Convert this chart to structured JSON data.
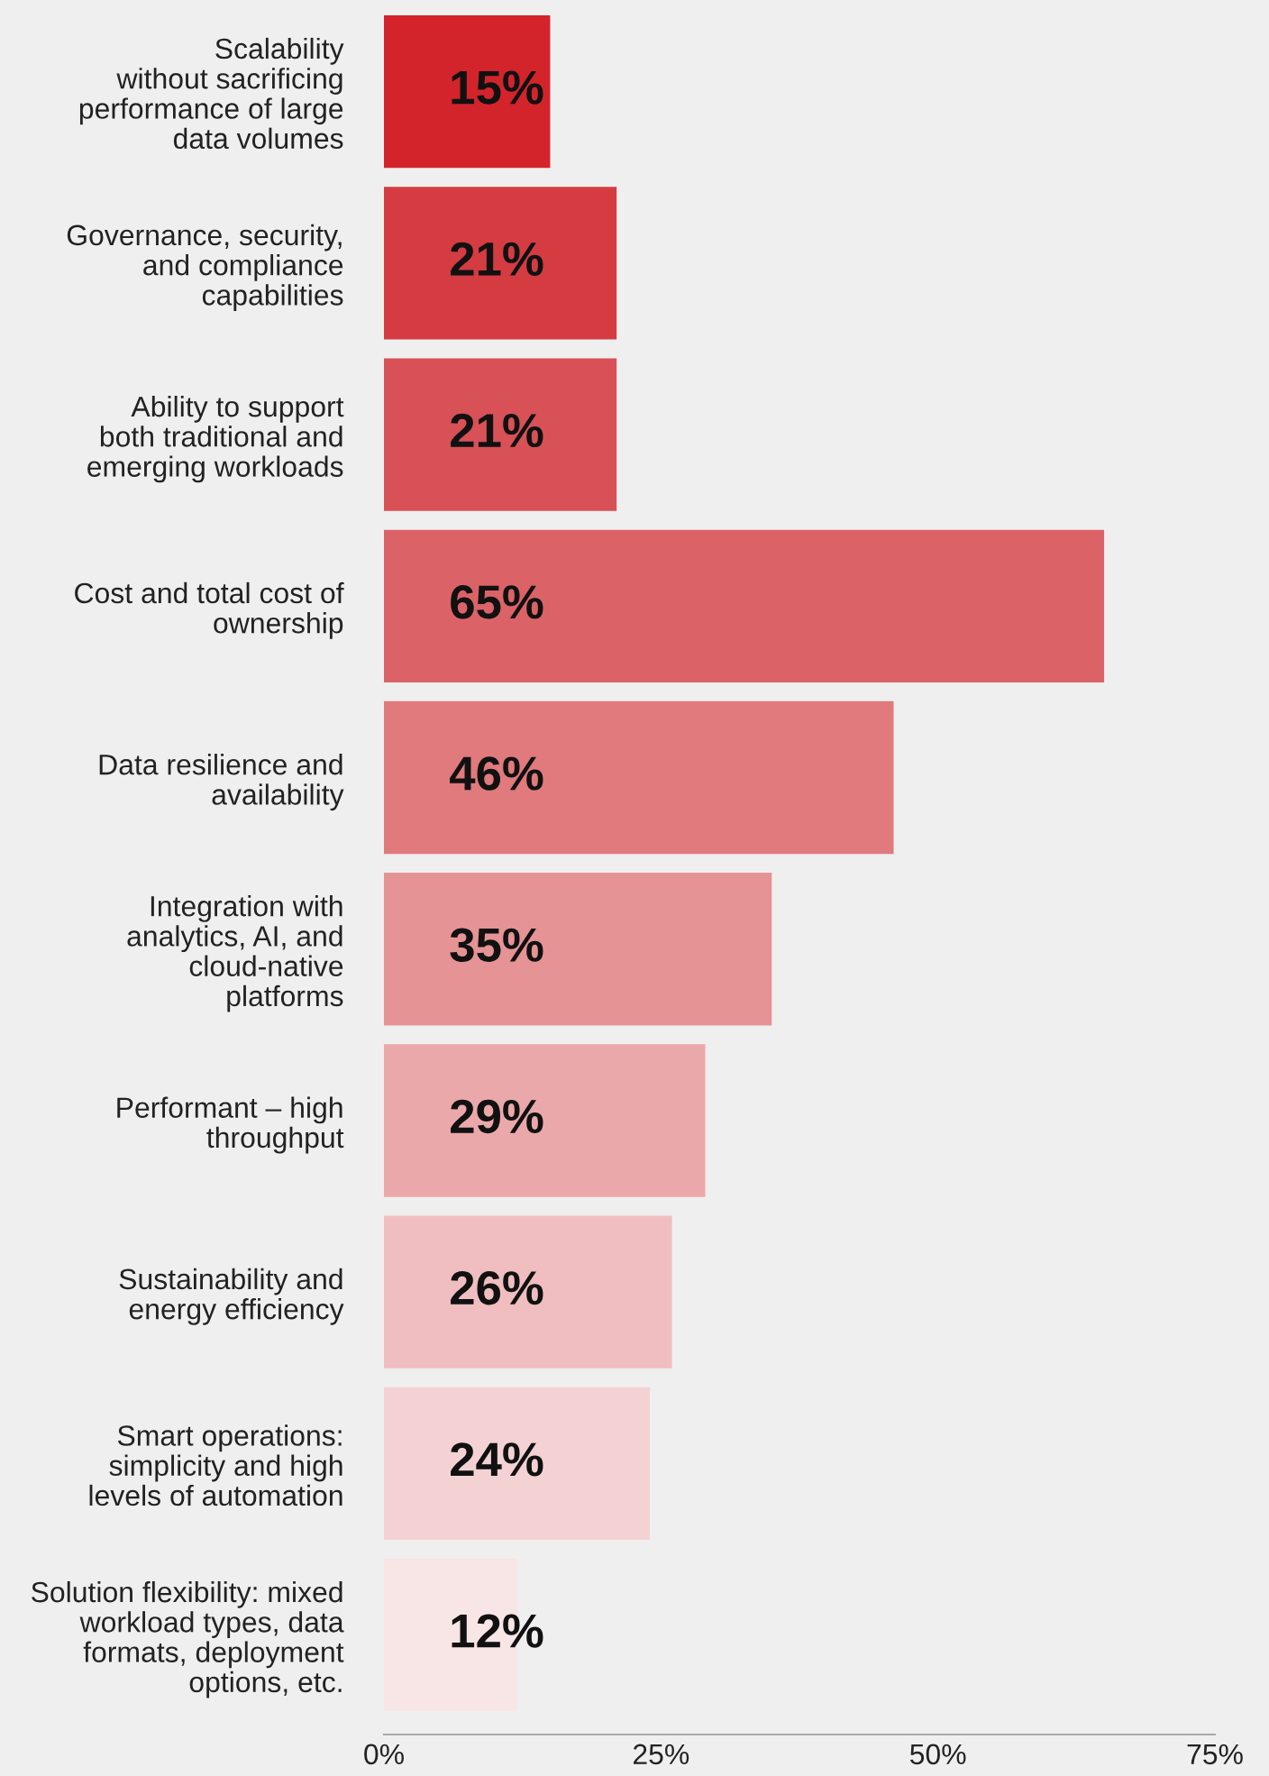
{
  "chart_data": {
    "type": "bar",
    "orientation": "horizontal",
    "categories": [
      "Scalability\nwithout sacrificing\nperformance of large\ndata volumes",
      "Governance, security,\nand compliance\ncapabilities",
      "Ability to support\nboth traditional and\nemerging workloads",
      "Cost and total cost of\nownership",
      "Data resilience and\navailability",
      "Integration with\nanalytics, AI, and\ncloud-native\nplatforms",
      "Performant – high\nthroughput",
      "Sustainability and\nenergy efficiency",
      "Smart operations:\nsimplicity and high\nlevels of automation",
      "Solution flexibility: mixed\nworkload types, data\nformats, deployment\noptions, etc."
    ],
    "values": [
      15,
      21,
      21,
      65,
      46,
      35,
      29,
      26,
      24,
      12
    ],
    "value_labels": [
      "15%",
      "21%",
      "21%",
      "65%",
      "46%",
      "35%",
      "29%",
      "26%",
      "24%",
      "12%"
    ],
    "colors": [
      "#d3242c",
      "#d43c42",
      "#d75157",
      "#db6367",
      "#e07a7d",
      "#e69395",
      "#eba8aa",
      "#f0bec0",
      "#f4d2d3",
      "#f8e5e6"
    ],
    "xlim": [
      0,
      75
    ],
    "xticks": [
      {
        "value": 0,
        "label": "0%"
      },
      {
        "value": 25,
        "label": "25%"
      },
      {
        "value": 50,
        "label": "50%"
      },
      {
        "value": 75,
        "label": "75%"
      }
    ],
    "grid": false,
    "legend": false
  }
}
